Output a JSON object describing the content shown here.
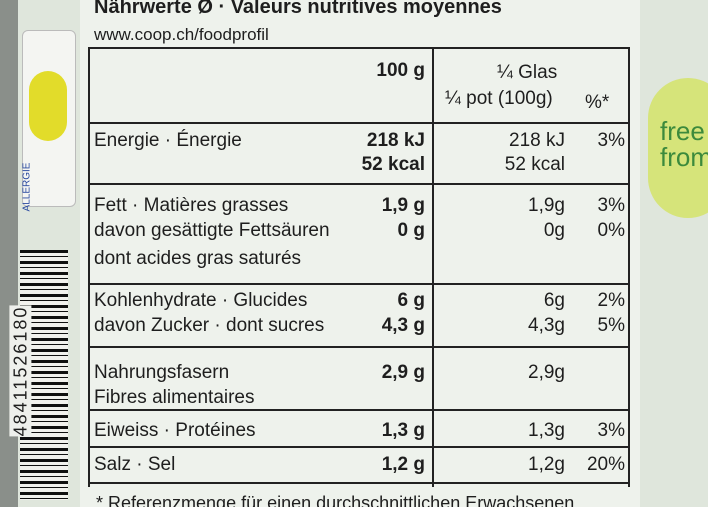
{
  "header": {
    "title": "Nährwerte Ø · Valeurs nutritives moyennes",
    "url": "www.coop.ch/foodprofil"
  },
  "columns": {
    "per100": "100 g",
    "portion_de": "¼ Glas",
    "portion_fr": "¼ pot (100g)",
    "percent": "%*"
  },
  "rows": [
    {
      "label": "Energie · Énergie",
      "per100": [
        "218 kJ",
        "52 kcal"
      ],
      "portion": [
        "218 kJ",
        "52 kcal"
      ],
      "percent": "3%"
    },
    {
      "label": "Fett · Matières grasses",
      "per100": "1,9 g",
      "portion": "1,9g",
      "percent": "3%"
    },
    {
      "label": [
        "davon gesättigte Fettsäuren",
        "dont acides gras saturés"
      ],
      "per100": "0 g",
      "portion": "0g",
      "percent": "0%"
    },
    {
      "label": "Kohlenhydrate · Glucides",
      "per100": "6 g",
      "portion": "6g",
      "percent": "2%"
    },
    {
      "label": "davon Zucker · dont sucres",
      "per100": "4,3 g",
      "portion": "4,3g",
      "percent": "5%"
    },
    {
      "label": [
        "Nahrungsfasern",
        "Fibres alimentaires"
      ],
      "per100": "2,9 g",
      "portion": "2,9g"
    },
    {
      "label": "Eiweiss · Protéines",
      "per100": "1,3 g",
      "portion": "1,3g",
      "percent": "3%"
    },
    {
      "label": "Salz · Sel",
      "per100": "1,2 g",
      "portion": "1,2g",
      "percent": "20%"
    }
  ],
  "footer": "* Referenzmenge für einen durchschnittlichen Erwachsenen",
  "side": {
    "badge": "ALLERGIE",
    "barcode_digits": "48411526180",
    "free_from": "free from"
  }
}
